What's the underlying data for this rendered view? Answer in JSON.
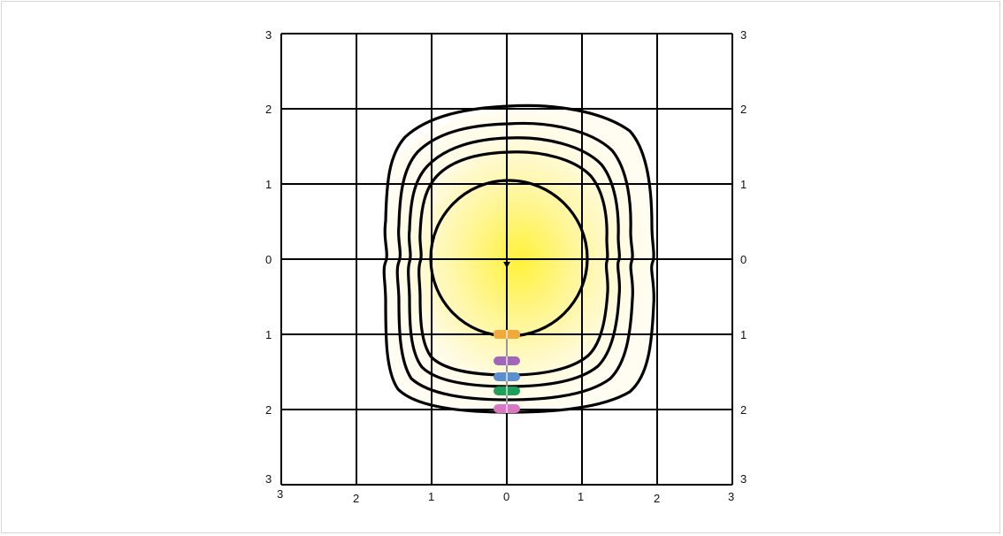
{
  "diagram": {
    "x_tick_labels": [
      "3",
      "2",
      "1",
      "0",
      "1",
      "2",
      "3"
    ],
    "y_tick_labels": [
      "3",
      "2",
      "1",
      "0",
      "1",
      "2",
      "3"
    ],
    "colors": {
      "glow_center": "#fff23a",
      "glow_edge": "#fffbe6",
      "grid": "#000000",
      "contour": "#000000",
      "marker_orange": "#f2a93b",
      "marker_purple": "#a066b8",
      "marker_blue": "#5b8fcf",
      "marker_green": "#1fa05a",
      "marker_pink": "#d978c2"
    },
    "markers": [
      {
        "name": "orange-marker",
        "color": "#f2a93b"
      },
      {
        "name": "purple-marker",
        "color": "#a066b8"
      },
      {
        "name": "blue-marker",
        "color": "#5b8fcf"
      },
      {
        "name": "green-marker",
        "color": "#1fa05a"
      },
      {
        "name": "pink-marker",
        "color": "#d978c2"
      }
    ]
  }
}
